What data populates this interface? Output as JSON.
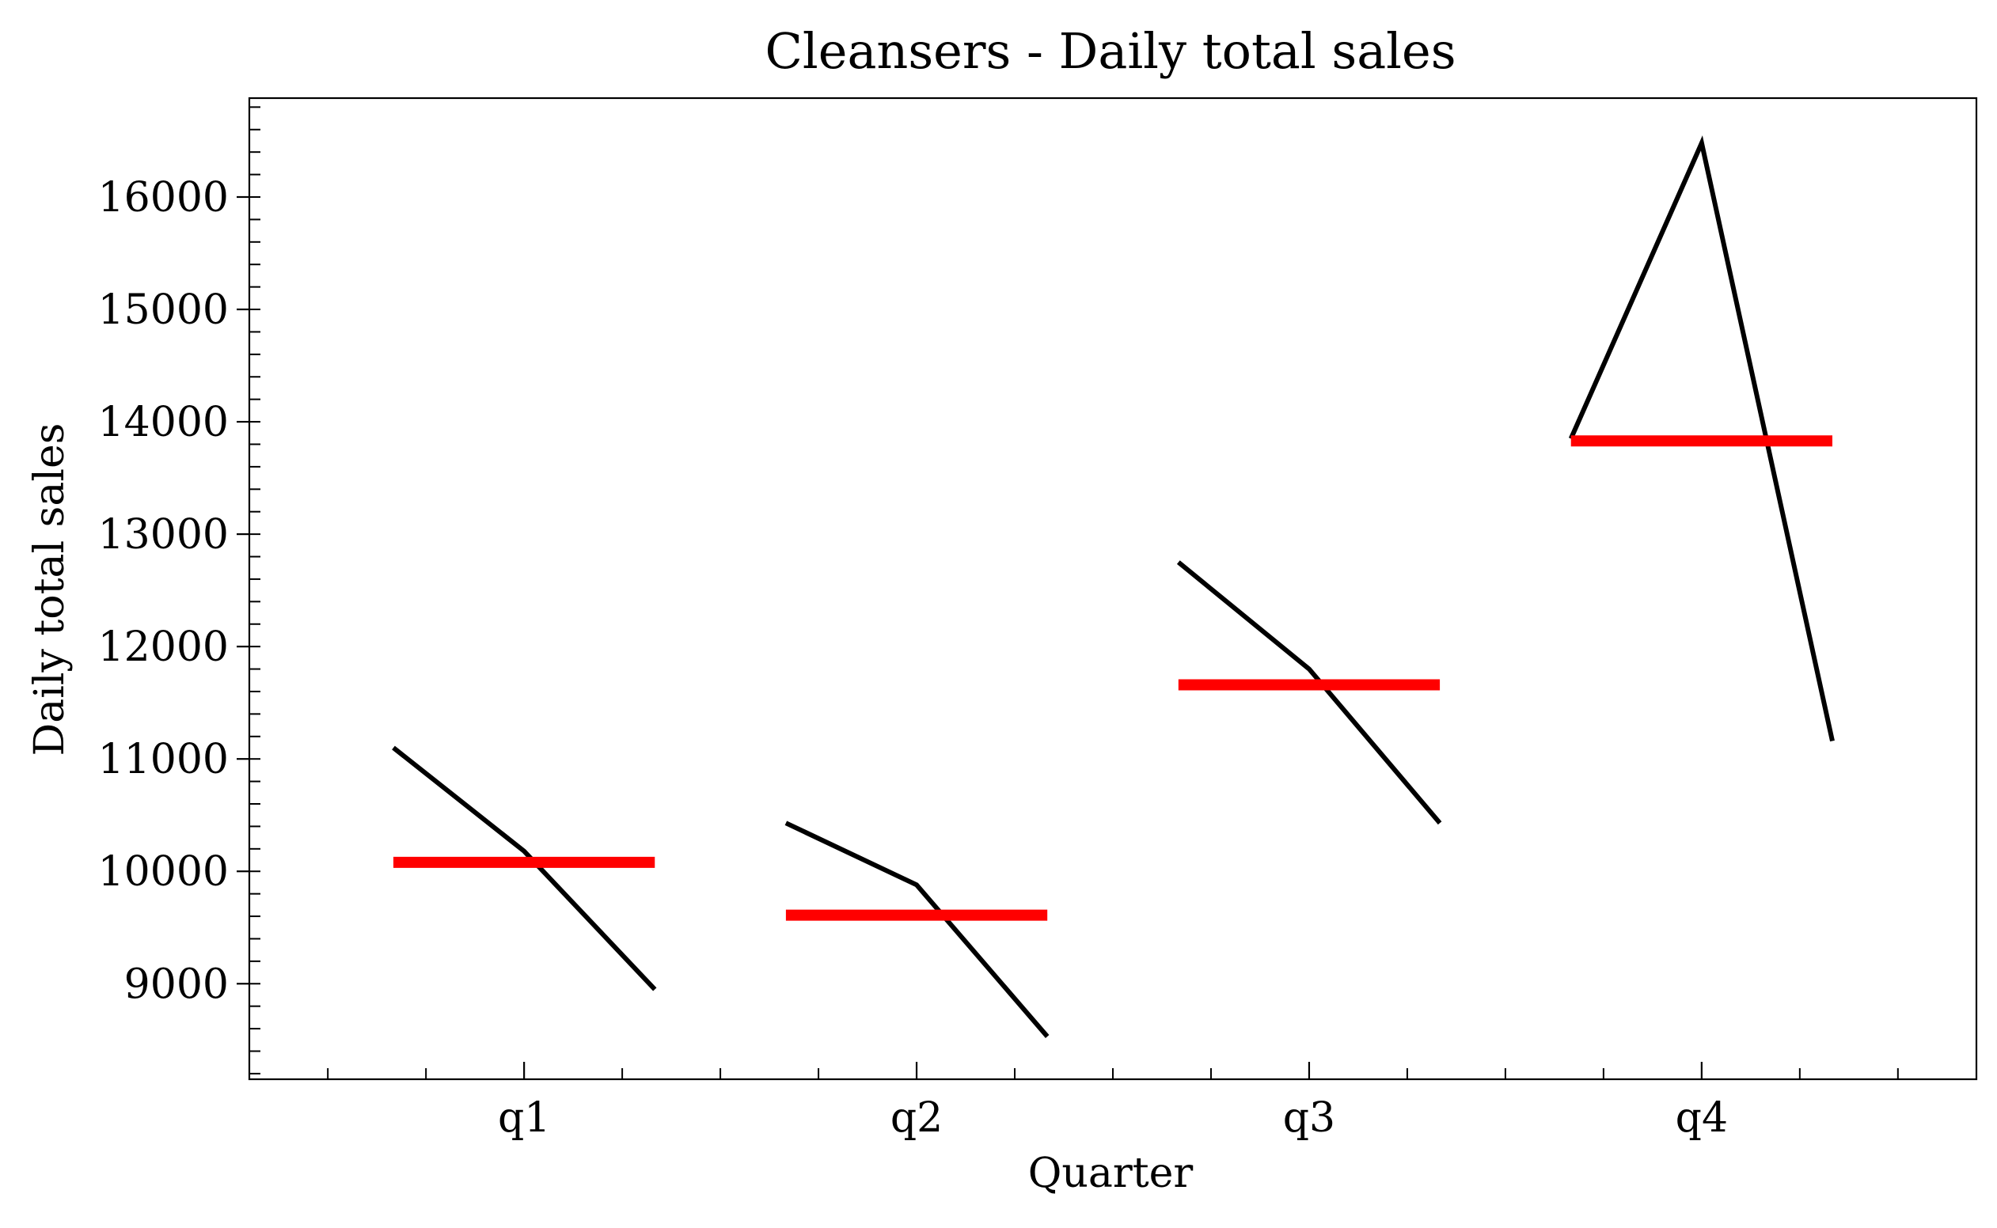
{
  "chart_data": {
    "type": "line",
    "title": "Cleansers - Daily total sales",
    "xlabel": "Quarter",
    "ylabel": "Daily total sales",
    "categories": [
      "q1",
      "q2",
      "q3",
      "q4"
    ],
    "ylim": [
      8150,
      16880
    ],
    "yticks": [
      9000,
      10000,
      11000,
      12000,
      13000,
      14000,
      15000,
      16000
    ],
    "y_minor_step": 200,
    "grid": false,
    "series": [
      {
        "category": "q1",
        "points": [
          11100,
          10180,
          8950
        ],
        "mean": 10080
      },
      {
        "category": "q2",
        "points": [
          10430,
          9880,
          8530
        ],
        "mean": 9610
      },
      {
        "category": "q3",
        "points": [
          12750,
          11800,
          10430
        ],
        "mean": 11660
      },
      {
        "category": "q4",
        "points": [
          13850,
          16480,
          11160
        ],
        "mean": 13830
      }
    ],
    "colors": {
      "line": "#000000",
      "mean": "#ff0000"
    }
  }
}
